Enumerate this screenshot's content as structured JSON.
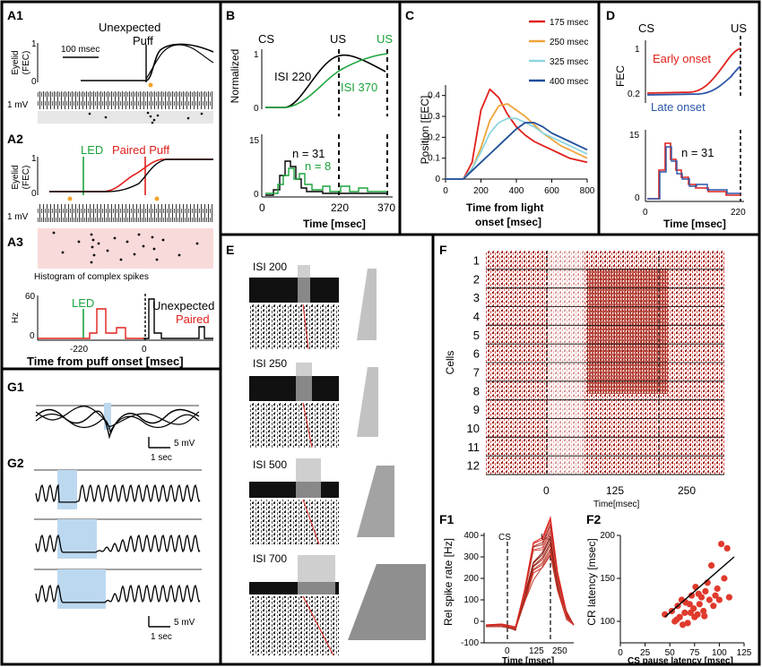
{
  "panels": {
    "A1": {
      "label": "A1",
      "title_line1": "Unexpected",
      "title_line2": "Puff",
      "scale": "100 msec",
      "ylabel_1": "Eyelid",
      "ylabel_2": "(FEC)",
      "y_top": "1",
      "y_bottom": "0",
      "trace_scale": "1 mV"
    },
    "A2": {
      "label": "A2",
      "led": "LED",
      "paired": "Paired Puff",
      "ylabel_1": "Eyelid",
      "ylabel_2": "(FEC)",
      "y_top": "1",
      "y_bottom": "0",
      "trace_scale": "1 mV"
    },
    "A3": {
      "label": "A3",
      "hist_title": "Histogram of complex spikes",
      "ylabel": "Hz",
      "y_top": "60",
      "y_bottom": "0",
      "led": "LED",
      "unexpected": "Unexpected",
      "paired": "Paired",
      "tick_neg": "-220",
      "tick_zero": "0",
      "xlabel": "Time from puff onset [msec]"
    },
    "B": {
      "label": "B",
      "cs": "CS",
      "us1": "US",
      "us2": "US",
      "ylabel": "Normalized",
      "isi220": "ISI 220",
      "isi370": "ISI 370",
      "n31": "n = 31",
      "n8": "n = 8",
      "y_top": "1",
      "y_bottom": "0",
      "y2_top": "15",
      "y2_bottom": "0",
      "ticks": [
        "0",
        "220",
        "370"
      ],
      "xlabel": "Time [msec]"
    },
    "C": {
      "label": "C",
      "ylabel": "Position [FEC]",
      "yticks": [
        "0.4",
        "0.3",
        "0.2",
        "0.1",
        "0"
      ],
      "xticks": [
        "0",
        "200",
        "400",
        "600",
        "800"
      ],
      "xlabel_1": "Time from light",
      "xlabel_2": "onset [msec]",
      "legend": [
        {
          "label": "175 msec",
          "color": "#e0201b"
        },
        {
          "label": "250 msec",
          "color": "#eea43a"
        },
        {
          "label": "325 msec",
          "color": "#8ed6e0"
        },
        {
          "label": "400 msec",
          "color": "#1f4e9a"
        }
      ]
    },
    "D": {
      "label": "D",
      "cs": "CS",
      "us": "US",
      "early": "Early onset",
      "late": "Late onset",
      "ylabel": "FEC",
      "y_top": "1",
      "y_mid": "0.2",
      "y2_top": "15",
      "y2_bottom": "0",
      "n31": "n = 31",
      "x0": "0",
      "x220": "220",
      "xlabel": "Time [msec]"
    },
    "E": {
      "label": "E",
      "isis": [
        "ISI  200",
        "ISI  250",
        "ISI  500",
        "ISI  700"
      ]
    },
    "F": {
      "label": "F",
      "cells": [
        "1",
        "2",
        "3",
        "4",
        "5",
        "6",
        "7",
        "8",
        "9",
        "10",
        "11",
        "12"
      ],
      "ylabel": "Cells",
      "xticks": [
        "0",
        "125",
        "250"
      ],
      "xunit": "Time[msec]"
    },
    "F1": {
      "label": "F1",
      "ylabel": "Rel spike rate [Hz]",
      "yticks": [
        "400",
        "300",
        "200",
        "100",
        "0",
        "-100"
      ],
      "cs": "CS",
      "us": "US",
      "xticks": [
        "0",
        "125",
        "250"
      ],
      "xlabel": "Time [msec]"
    },
    "F2": {
      "label": "F2",
      "ylabel": "CR latency [msec]",
      "yticks": [
        "200",
        "150",
        "100"
      ],
      "xticks": [
        "0",
        "25",
        "50",
        "75",
        "100",
        "125"
      ],
      "xlabel": "CS pause latency [msec]"
    },
    "G1": {
      "label": "G1",
      "scale_v": "5 mV",
      "scale_t": "1 sec"
    },
    "G2": {
      "label": "G2",
      "scale_v": "5 mV",
      "scale_t": "1 sec"
    }
  },
  "colors": {
    "red": "#e0201b",
    "green": "#1aa33a",
    "blue": "#2a55a8",
    "orange": "#f3a42c",
    "pink": "#f9dada",
    "lightblue": "#bcd8ef",
    "scatter": "#e03a2c"
  },
  "chart_data": [
    {
      "id": "C",
      "type": "line",
      "title": "",
      "xlabel": "Time from light onset [msec]",
      "ylabel": "Position [FEC]",
      "xlim": [
        0,
        800
      ],
      "ylim": [
        0,
        0.45
      ],
      "x": [
        0,
        100,
        150,
        200,
        250,
        300,
        350,
        400,
        450,
        500,
        550,
        600,
        650,
        700,
        750,
        800
      ],
      "series": [
        {
          "name": "175 msec",
          "values": [
            0,
            0,
            0.08,
            0.33,
            0.43,
            0.39,
            0.31,
            0.25,
            0.21,
            0.18,
            0.16,
            0.14,
            0.12,
            0.1,
            0.09,
            0.08
          ]
        },
        {
          "name": "250 msec",
          "values": [
            0,
            0,
            0.05,
            0.15,
            0.28,
            0.35,
            0.36,
            0.33,
            0.3,
            0.26,
            0.22,
            0.19,
            0.16,
            0.14,
            0.12,
            0.1
          ]
        },
        {
          "name": "325 msec",
          "values": [
            0,
            0,
            0.05,
            0.13,
            0.22,
            0.27,
            0.29,
            0.29,
            0.27,
            0.25,
            0.22,
            0.2,
            0.18,
            0.16,
            0.14,
            0.12
          ]
        },
        {
          "name": "400 msec",
          "values": [
            0,
            0,
            0.04,
            0.08,
            0.12,
            0.16,
            0.2,
            0.24,
            0.27,
            0.27,
            0.25,
            0.22,
            0.2,
            0.18,
            0.16,
            0.14
          ]
        }
      ]
    },
    {
      "id": "F2",
      "type": "scatter",
      "title": "",
      "xlabel": "CS pause latency [msec]",
      "ylabel": "CR latency [msec]",
      "xlim": [
        0,
        125
      ],
      "ylim": [
        75,
        200
      ],
      "x": [
        45,
        52,
        55,
        58,
        60,
        62,
        65,
        68,
        70,
        72,
        74,
        75,
        76,
        78,
        80,
        82,
        84,
        86,
        88,
        90,
        92,
        94,
        96,
        98,
        100,
        102,
        105,
        108,
        110,
        57,
        63,
        66,
        71,
        79,
        85
      ],
      "y": [
        108,
        112,
        100,
        118,
        105,
        125,
        110,
        98,
        120,
        130,
        115,
        105,
        140,
        108,
        120,
        128,
        112,
        135,
        145,
        125,
        165,
        118,
        130,
        138,
        125,
        190,
        150,
        185,
        128,
        102,
        96,
        122,
        110,
        132,
        106
      ],
      "fit": {
        "x": [
          45,
          115
        ],
        "y": [
          105,
          175
        ]
      }
    }
  ]
}
